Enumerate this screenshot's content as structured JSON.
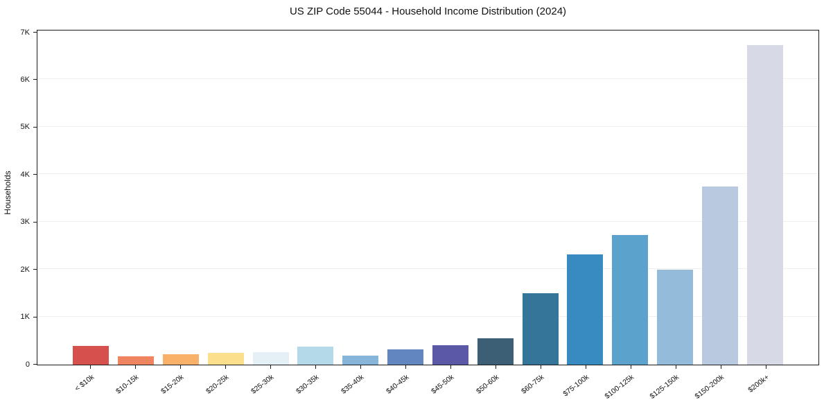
{
  "title": "US ZIP Code 55044 - Household Income Distribution (2024)",
  "chart_data": {
    "type": "bar",
    "title": "US ZIP Code 55044 - Household Income Distribution (2024)",
    "xlabel": "",
    "ylabel": "Households",
    "ylim": [
      0,
      7000
    ],
    "ytick_labels": [
      "0",
      "1K",
      "2K",
      "3K",
      "4K",
      "5K",
      "6K",
      "7K"
    ],
    "grid": "horizontal",
    "legend": "none",
    "categories": [
      "< $10k",
      "$10-15k",
      "$15-20k",
      "$20-25k",
      "$25-30k",
      "$30-35k",
      "$35-40k",
      "$40-45k",
      "$45-50k",
      "$50-60k",
      "$60-75k",
      "$75-100k",
      "$100-125k",
      "$125-150k",
      "$150-200k",
      "$200k+"
    ],
    "values": [
      390,
      170,
      225,
      245,
      265,
      385,
      190,
      320,
      410,
      555,
      1510,
      2320,
      2740,
      2000,
      3760,
      6740
    ],
    "bar_colors": [
      "#d6504d",
      "#ee8460",
      "#f9b169",
      "#fcdf8d",
      "#e4f0f5",
      "#b4d9e9",
      "#86b5d9",
      "#6286c0",
      "#5b58a7",
      "#3d5f75",
      "#35759a",
      "#378bc0",
      "#5ba3cc",
      "#95bbda",
      "#b9c9e0",
      "#d8d9e6"
    ],
    "axis_color": "#1a1a1a",
    "gridline_color": "#efefef",
    "background_color": "#ffffff"
  }
}
